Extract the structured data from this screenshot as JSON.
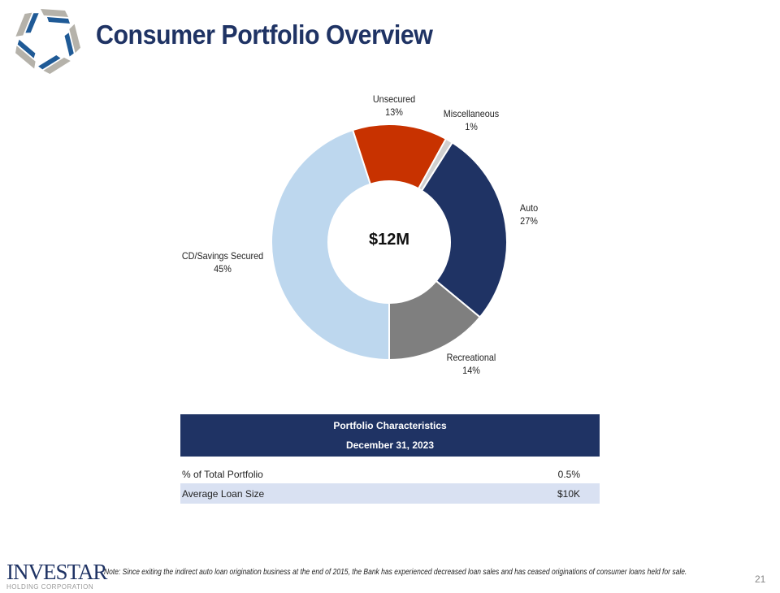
{
  "header": {
    "title": "Consumer Portfolio Overview"
  },
  "chart_data": {
    "type": "pie",
    "donut": true,
    "center_label": "$12M",
    "categories": [
      "CD/Savings Secured",
      "Unsecured",
      "Miscellaneous",
      "Auto",
      "Recreational"
    ],
    "values": [
      45,
      13,
      1,
      27,
      14
    ],
    "labels": [
      "45%",
      "13%",
      "1%",
      "27%",
      "14%"
    ],
    "colors": [
      "#BDD7EE",
      "#C83200",
      "#D0D0D0",
      "#1F3364",
      "#7F7F7F"
    ]
  },
  "table": {
    "title": "Portfolio Characteristics",
    "date": "December 31, 2023",
    "rows": [
      {
        "label": "% of Total Portfolio",
        "value": "0.5%"
      },
      {
        "label": "Average Loan Size",
        "value": "$10K"
      }
    ]
  },
  "footer": {
    "brand": "INVESTAR",
    "brand_sub": "HOLDING CORPORATION",
    "note": "Note: Since exiting the indirect auto loan origination business at the end of 2015, the Bank has experienced decreased loan sales and has ceased originations of consumer loans held for sale.",
    "page": "21"
  }
}
